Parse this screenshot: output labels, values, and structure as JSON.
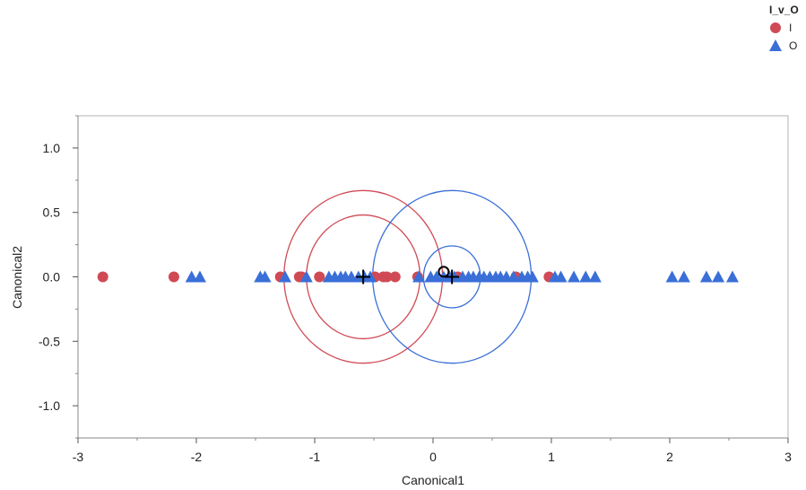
{
  "legend": {
    "title": "I_v_O",
    "items": [
      {
        "label": "I",
        "marker": "circle",
        "color": "#d04a55"
      },
      {
        "label": "O",
        "marker": "triangle",
        "color": "#3a6fd8"
      }
    ]
  },
  "chart_data": {
    "type": "scatter",
    "xlabel": "Canonical1",
    "ylabel": "Canonical2",
    "xlim": [
      -3,
      3
    ],
    "ylim": [
      -1.25,
      1.25
    ],
    "xticks": [
      -3,
      -2,
      -1,
      0,
      1,
      2,
      3
    ],
    "xtick_labels": [
      "-3",
      "-2",
      "-1",
      "0",
      "1",
      "2",
      "3"
    ],
    "yticks": [
      -1.0,
      -0.5,
      0.0,
      0.5,
      1.0
    ],
    "ytick_labels": [
      "-1.0",
      "-0.5",
      "0.0",
      "0.5",
      "1.0"
    ],
    "grid": false,
    "legend_position": "top-right",
    "series": [
      {
        "name": "I",
        "marker": "circle",
        "color": "#d04a55",
        "x": [
          -2.79,
          -2.19,
          -1.29,
          -1.13,
          -1.11,
          -0.96,
          -0.49,
          -0.42,
          -0.39,
          -0.32,
          -0.13,
          0.21,
          0.7,
          0.98
        ],
        "y": [
          0,
          0,
          0,
          0,
          0,
          0,
          0,
          0,
          0,
          0,
          0,
          0,
          0,
          0
        ]
      },
      {
        "name": "O",
        "marker": "triangle",
        "color": "#3a6fd8",
        "x": [
          -2.04,
          -1.97,
          -1.46,
          -1.42,
          -1.25,
          -1.07,
          -0.88,
          -0.83,
          -0.78,
          -0.74,
          -0.69,
          -0.63,
          -0.58,
          -0.53,
          -0.12,
          -0.02,
          0.03,
          0.09,
          0.14,
          0.18,
          0.25,
          0.3,
          0.34,
          0.39,
          0.43,
          0.48,
          0.53,
          0.57,
          0.62,
          0.68,
          0.75,
          0.8,
          0.84,
          1.03,
          1.08,
          1.19,
          1.29,
          1.37,
          2.02,
          2.12,
          2.31,
          2.41,
          2.53
        ],
        "y": [
          0,
          0,
          0,
          0,
          0,
          0,
          0,
          0,
          0,
          0,
          0,
          0,
          0,
          0,
          0,
          0,
          0,
          0,
          0,
          0,
          0,
          0,
          0,
          0,
          0,
          0,
          0,
          0,
          0,
          0,
          0,
          0,
          0,
          0,
          0,
          0,
          0,
          0,
          0,
          0,
          0,
          0,
          0
        ]
      }
    ],
    "centroids": [
      {
        "group": "I",
        "x": -0.59,
        "y": 0.0,
        "color": "#d04a55",
        "inner_radius": 0.48,
        "outer_radius": 0.67
      },
      {
        "group": "O",
        "x": 0.16,
        "y": 0.0,
        "color": "#3a6fd8",
        "inner_radius": 0.24,
        "outer_radius": 0.67
      }
    ],
    "overall_mean": {
      "x": 0.09,
      "y": 0.04
    }
  }
}
